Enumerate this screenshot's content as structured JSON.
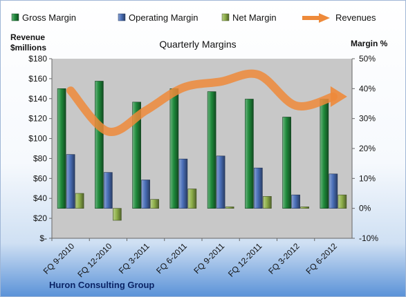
{
  "company": "Huron Consulting Group",
  "colors": {
    "gross_margin": "#1f8a3b",
    "operating_margin": "#4a6fb8",
    "net_margin": "#8fb04a",
    "revenues": "#ee8a3a",
    "plot_bg": "#c8c8c8"
  },
  "chart_data": {
    "type": "bar",
    "title": "Quarterly Margins",
    "left_axis": {
      "title_line1": "Revenue",
      "title_line2": "$millions",
      "min": 0,
      "max": 180,
      "step": 20,
      "tick_labels": [
        "$-",
        "$20",
        "$40",
        "$60",
        "$80",
        "$100",
        "$120",
        "$140",
        "$160",
        "$180"
      ]
    },
    "right_axis": {
      "title": "Margin %",
      "min": -10,
      "max": 50,
      "step": 10,
      "tick_labels": [
        "-10%",
        "0%",
        "10%",
        "20%",
        "30%",
        "40%",
        "50%"
      ]
    },
    "categories": [
      "FQ 9-2010",
      "FQ 12-2010",
      "FQ 3-2011",
      "FQ 6-2011",
      "FQ 9-2011",
      "FQ 12-2011",
      "FQ 3-2012",
      "FQ 6-2012"
    ],
    "series": [
      {
        "name": "Gross Margin",
        "axis": "right",
        "kind": "bar",
        "values": [
          40.0,
          42.5,
          35.5,
          40.0,
          39.0,
          36.5,
          30.5,
          36.5
        ]
      },
      {
        "name": "Operating Margin",
        "axis": "right",
        "kind": "bar",
        "values": [
          18.0,
          12.0,
          9.5,
          16.5,
          17.5,
          13.5,
          4.5,
          11.5
        ]
      },
      {
        "name": "Net Margin",
        "axis": "right",
        "kind": "bar",
        "values": [
          5.0,
          -4.0,
          3.0,
          6.5,
          0.5,
          4.0,
          0.5,
          4.5
        ]
      },
      {
        "name": "Revenues",
        "axis": "left",
        "kind": "line",
        "values": [
          148,
          107,
          128,
          151,
          157,
          164,
          133,
          142
        ]
      }
    ],
    "legend_position": "top",
    "grid": false
  }
}
